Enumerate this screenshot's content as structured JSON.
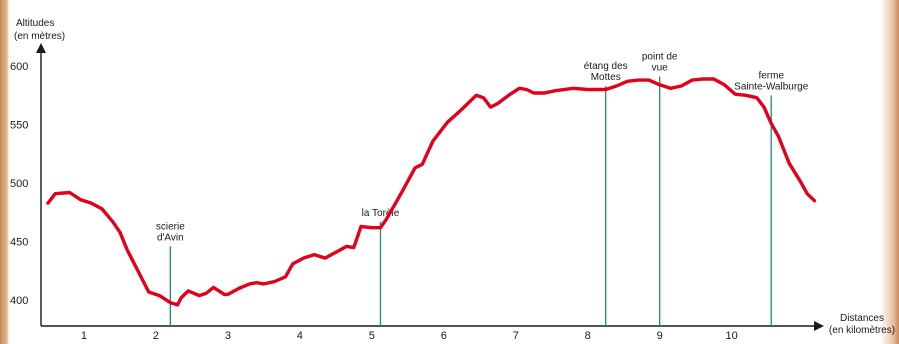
{
  "chart_data": {
    "type": "line",
    "ylabel": [
      "Altitudes",
      "(en mètres)"
    ],
    "xlabel": [
      "Distances",
      "(en kilomètres)"
    ],
    "x_ticks": [
      "1",
      "2",
      "3",
      "4",
      "5",
      "6",
      "7",
      "8",
      "9",
      "10"
    ],
    "y_ticks": [
      "400",
      "450",
      "500",
      "550",
      "600"
    ],
    "xlim": [
      0,
      10.7
    ],
    "ylim": [
      378,
      618
    ],
    "grid": false,
    "colors": {
      "line": "#e3001b",
      "markers": "#1f8f6a",
      "axis": "#1a1a1a"
    },
    "series": [
      {
        "x": [
          0,
          0.1,
          0.3,
          0.45,
          0.6,
          0.75,
          0.9,
          1.0,
          1.1,
          1.25,
          1.4,
          1.55,
          1.7,
          1.8,
          1.85,
          1.95,
          2.1,
          2.2,
          2.3,
          2.45,
          2.5,
          2.65,
          2.8,
          2.9,
          3.0,
          3.15,
          3.3,
          3.4,
          3.55,
          3.7,
          3.85,
          4.0,
          4.15,
          4.25,
          4.35,
          4.5,
          4.62,
          4.7,
          4.85,
          4.95,
          5.1,
          5.2,
          5.35,
          5.55,
          5.75,
          5.95,
          6.05,
          6.15,
          6.25,
          6.4,
          6.55,
          6.65,
          6.75,
          6.9,
          7.05,
          7.3,
          7.5,
          7.75,
          7.9,
          8.05,
          8.2,
          8.35,
          8.5,
          8.65,
          8.8,
          8.95,
          9.1,
          9.25,
          9.4,
          9.55,
          9.7,
          9.85,
          9.95,
          10.05,
          10.15,
          10.3,
          10.45,
          10.55,
          10.65
        ],
        "y": [
          483,
          491,
          492,
          486,
          483,
          478,
          467,
          458,
          443,
          425,
          407,
          404,
          398,
          396,
          402,
          408,
          404,
          406,
          411,
          405,
          405,
          410,
          414,
          415,
          414,
          416,
          420,
          431,
          436,
          439,
          436,
          441,
          446,
          445,
          463,
          462,
          462,
          469,
          485,
          496,
          513,
          516,
          536,
          552,
          563,
          575,
          573,
          565,
          568,
          575,
          581,
          580,
          577,
          577,
          579,
          581,
          580,
          580,
          583,
          587,
          588,
          588,
          584,
          581,
          583,
          588,
          589,
          589,
          584,
          576,
          575,
          573,
          565,
          551,
          540,
          517,
          502,
          491,
          485
        ]
      }
    ],
    "annotations": [
      {
        "x": 1.7,
        "y_top": 446,
        "label": [
          "scierie",
          "d'Avin"
        ]
      },
      {
        "x": 4.62,
        "y_top": 467,
        "label": [
          "la Torèle"
        ]
      },
      {
        "x": 7.75,
        "y_top": 583,
        "label": [
          "étang des",
          "Mottes"
        ]
      },
      {
        "x": 8.5,
        "y_top": 591,
        "label": [
          "point de",
          "vue"
        ]
      },
      {
        "x": 10.05,
        "y_top": 575,
        "label": [
          "ferme",
          "Sainte-Walburge"
        ]
      }
    ]
  }
}
